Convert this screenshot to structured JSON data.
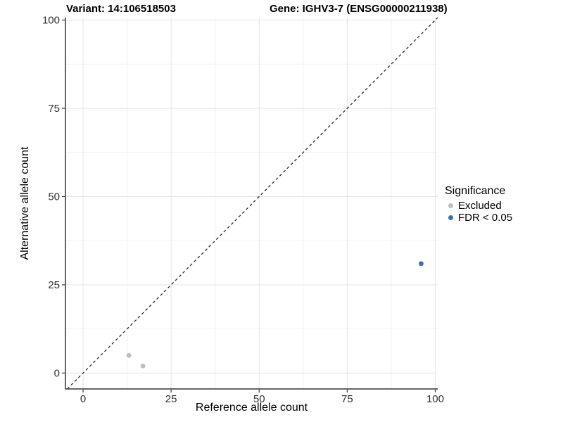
{
  "titles": {
    "variant": "Variant: 14:106518503",
    "gene": "Gene: IGHV3-7 (ENSG00000211938)"
  },
  "chart_data": {
    "type": "scatter",
    "title": "Variant: 14:106518503   Gene: IGHV3-7 (ENSG00000211938)",
    "xlabel": "Reference allele count",
    "ylabel": "Alternative allele count",
    "xlim": [
      -5,
      100.7
    ],
    "ylim": [
      -4.5,
      100.7
    ],
    "x_ticks": [
      0,
      25,
      50,
      75,
      100
    ],
    "y_ticks": [
      0,
      25,
      50,
      75,
      100
    ],
    "x_minor_gridlines": [
      12.5,
      37.5,
      62.5,
      87.5
    ],
    "y_minor_gridlines": [
      12.5,
      37.5,
      62.5,
      87.5
    ],
    "grid": true,
    "identity_line": {
      "type": "y=x",
      "style": "dashed"
    },
    "legend": {
      "title": "Significance",
      "position": "right",
      "items": [
        {
          "label": "Excluded",
          "color": "#bfbfbf"
        },
        {
          "label": "FDR < 0.05",
          "color": "#3f6fa6"
        }
      ]
    },
    "series": [
      {
        "name": "Excluded",
        "color": "#bfbfbf",
        "points": [
          {
            "x": 13,
            "y": 5
          },
          {
            "x": 17,
            "y": 2
          }
        ]
      },
      {
        "name": "FDR < 0.05",
        "color": "#3f6fa6",
        "points": [
          {
            "x": 96,
            "y": 31
          }
        ]
      }
    ],
    "colors": {
      "grid_major": "#e4e4e4",
      "grid_minor": "#f2f2f2",
      "axis_line": "#333333",
      "tick_label": "#303030",
      "identity_line": "#1a1a1a",
      "background": "#ffffff"
    }
  }
}
